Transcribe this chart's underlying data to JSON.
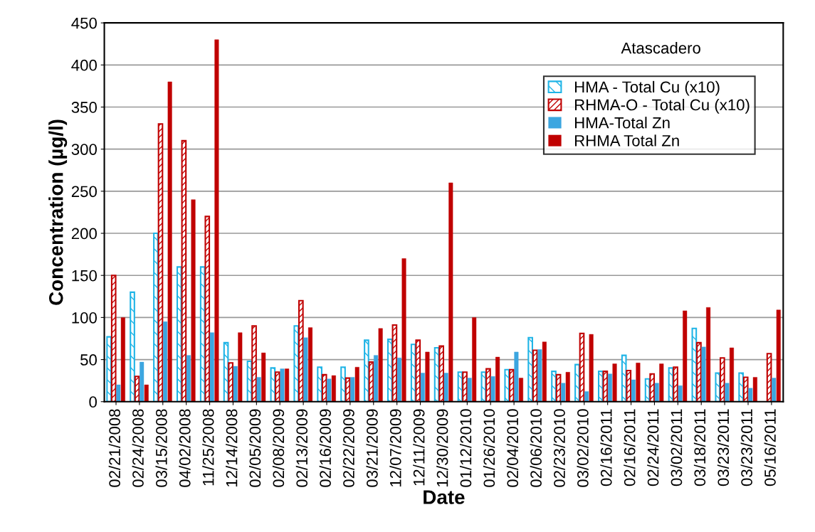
{
  "chart_data": {
    "type": "bar",
    "xlabel": "Date",
    "ylabel": "Concentration (µg/l)",
    "categories": [
      "02/21/2008",
      "02/24/2008",
      "03/15/2008",
      "04/02/2008",
      "11/25/2008",
      "12/14/2008",
      "02/05/2009",
      "02/08/2009",
      "02/13/2009",
      "02/16/2009",
      "02/22/2009",
      "03/21/2009",
      "12/07/2009",
      "12/11/2009",
      "12/30/2009",
      "01/12/2010",
      "01/26/2010",
      "02/04/2010",
      "02/06/2010",
      "02/23/2010",
      "03/02/2010",
      "02/16/2011",
      "02/16/2011",
      "02/24/2011",
      "03/02/2011",
      "03/18/2011",
      "03/23/2011",
      "03/23/2011",
      "05/16/2011"
    ],
    "series": [
      {
        "name": "HMA - Total Cu (x10)",
        "color": "#1fb4e6",
        "values": [
          77,
          130,
          200,
          160,
          160,
          70,
          48,
          40,
          90,
          41,
          41,
          73,
          74,
          68,
          64,
          35,
          35,
          38,
          76,
          36,
          44,
          36,
          55,
          27,
          40,
          87,
          34,
          34,
          null
        ]
      },
      {
        "name": "RHMA-O - Total Cu (x10)",
        "color": "#c00000",
        "values": [
          150,
          30,
          330,
          310,
          220,
          46,
          90,
          35,
          120,
          32,
          28,
          47,
          91,
          73,
          66,
          35,
          39,
          38,
          61,
          32,
          81,
          36,
          37,
          33,
          41,
          70,
          52,
          29,
          57
        ]
      },
      {
        "name": "HMA-Total Zn",
        "color": "#3ca6e0",
        "values": [
          20,
          47,
          95,
          55,
          82,
          42,
          29,
          39,
          76,
          27,
          29,
          55,
          52,
          34,
          34,
          28,
          30,
          59,
          62,
          22,
          12,
          33,
          26,
          22,
          19,
          65,
          22,
          16,
          28
        ]
      },
      {
        "name": "RHMA Total Zn",
        "color": "#c00000",
        "values": [
          100,
          20,
          380,
          240,
          430,
          82,
          58,
          39,
          88,
          31,
          41,
          87,
          170,
          59,
          260,
          100,
          53,
          28,
          71,
          35,
          80,
          45,
          46,
          45,
          108,
          112,
          64,
          29,
          109
        ]
      }
    ],
    "ylim": [
      0,
      450
    ],
    "yticks": [
      0,
      50,
      100,
      150,
      200,
      250,
      300,
      350,
      400,
      450
    ],
    "grid": "y",
    "legend": "top right",
    "annotations": [
      "Atascadero"
    ]
  }
}
